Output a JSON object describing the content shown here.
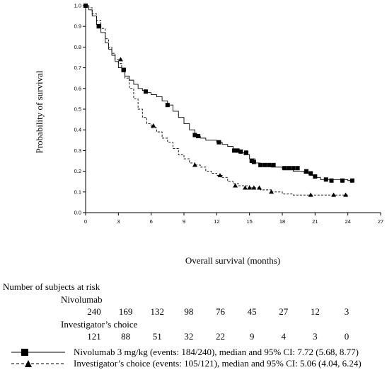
{
  "chart_data": {
    "type": "line",
    "ylabel": "Probability of survival",
    "xlabel": "Overall survival (months)",
    "xlim": [
      0,
      27
    ],
    "ylim": [
      0,
      1.0
    ],
    "xticks": [
      0,
      3,
      6,
      9,
      12,
      15,
      18,
      21,
      24,
      27
    ],
    "yticks": [
      0.0,
      0.1,
      0.2,
      0.3,
      0.4,
      0.5,
      0.6,
      0.7,
      0.8,
      0.9,
      1.0
    ],
    "ytick_labels": [
      "0.0",
      "0.1",
      "0.2",
      "0.3",
      "0.4",
      "0.5",
      "0.6",
      "0.7",
      "0.8",
      "0.9",
      "1.0"
    ],
    "grid": false,
    "series": [
      {
        "name": "Nivolumab 3 mg/kg (events: 184/240), median and 95% CI: 7.72 (5.68, 8.77)",
        "line_style": "solid",
        "marker": "square",
        "x": [
          0,
          0.3,
          0.6,
          1.0,
          1.4,
          1.8,
          2.1,
          2.4,
          2.7,
          3.0,
          3.3,
          3.6,
          4.0,
          4.4,
          4.8,
          5.2,
          5.6,
          6.0,
          6.5,
          7.0,
          7.5,
          8.0,
          8.5,
          9.0,
          9.5,
          10.0,
          10.5,
          11.0,
          11.5,
          12.0,
          12.5,
          13.0,
          13.5,
          14.0,
          14.5,
          15.0,
          15.5,
          16.0,
          17.0,
          18.0,
          19.0,
          20.0,
          20.5,
          21.0,
          21.5,
          22.0,
          23.0,
          24.0,
          24.5
        ],
        "y": [
          1.0,
          0.98,
          0.95,
          0.91,
          0.87,
          0.82,
          0.79,
          0.76,
          0.73,
          0.7,
          0.68,
          0.66,
          0.64,
          0.62,
          0.6,
          0.59,
          0.58,
          0.57,
          0.56,
          0.54,
          0.52,
          0.49,
          0.46,
          0.43,
          0.4,
          0.37,
          0.36,
          0.35,
          0.35,
          0.34,
          0.33,
          0.32,
          0.3,
          0.29,
          0.28,
          0.26,
          0.24,
          0.23,
          0.22,
          0.21,
          0.2,
          0.19,
          0.18,
          0.17,
          0.16,
          0.16,
          0.16,
          0.155,
          0.155
        ],
        "marker_x": [
          0,
          1.2,
          3.5,
          5.5,
          7.5,
          10.0,
          10.3,
          12.2,
          13.6,
          13.9,
          14.2,
          14.7,
          15.2,
          15.4,
          16.0,
          16.4,
          16.8,
          17.2,
          18.2,
          18.6,
          19.0,
          19.4,
          20.2,
          20.6,
          21.0,
          22.0,
          22.5,
          23.5,
          24.4
        ],
        "marker_y": [
          1.0,
          0.9,
          0.69,
          0.585,
          0.52,
          0.375,
          0.37,
          0.34,
          0.3,
          0.3,
          0.295,
          0.29,
          0.25,
          0.245,
          0.23,
          0.23,
          0.23,
          0.23,
          0.215,
          0.215,
          0.215,
          0.215,
          0.2,
          0.19,
          0.175,
          0.16,
          0.155,
          0.155,
          0.155
        ]
      },
      {
        "name": "Investigator’s choice (events: 105/121), median and 95% CI: 5.06 (4.04, 6.24)",
        "line_style": "dashed",
        "marker": "triangle",
        "x": [
          0,
          0.3,
          0.6,
          1.0,
          1.4,
          1.8,
          2.1,
          2.4,
          2.7,
          3.0,
          3.3,
          3.6,
          4.0,
          4.4,
          4.8,
          5.2,
          5.6,
          6.0,
          6.5,
          7.0,
          7.5,
          8.0,
          8.5,
          9.0,
          9.5,
          10.0,
          10.5,
          11.0,
          11.5,
          12.0,
          12.5,
          13.0,
          13.5,
          14.0,
          15.0,
          16.0,
          17.0,
          18.0,
          19.0,
          20.0,
          21.0,
          22.0,
          23.0,
          24.0
        ],
        "y": [
          1.0,
          0.99,
          0.96,
          0.93,
          0.89,
          0.84,
          0.8,
          0.77,
          0.74,
          0.72,
          0.69,
          0.65,
          0.6,
          0.55,
          0.5,
          0.46,
          0.43,
          0.41,
          0.39,
          0.36,
          0.34,
          0.31,
          0.28,
          0.26,
          0.24,
          0.23,
          0.22,
          0.2,
          0.19,
          0.18,
          0.17,
          0.15,
          0.14,
          0.13,
          0.12,
          0.11,
          0.1,
          0.09,
          0.085,
          0.085,
          0.085,
          0.085,
          0.085,
          0.085
        ],
        "marker_x": [
          0,
          3.2,
          6.2,
          10.0,
          12.3,
          13.7,
          14.6,
          15.0,
          15.4,
          15.9,
          17.0,
          20.6,
          22.7,
          23.8
        ],
        "marker_y": [
          1.0,
          0.74,
          0.42,
          0.23,
          0.18,
          0.13,
          0.12,
          0.12,
          0.12,
          0.12,
          0.1,
          0.085,
          0.085,
          0.085
        ]
      }
    ],
    "risk_table": {
      "title": "Number of subjects at risk",
      "timepoints": [
        0,
        3,
        6,
        9,
        12,
        15,
        18,
        21,
        24
      ],
      "arms": [
        {
          "name": "Nivolumab",
          "counts": [
            "240",
            "169",
            "132",
            "98",
            "76",
            "45",
            "27",
            "12",
            "3"
          ]
        },
        {
          "name": "Investigator’s choice",
          "counts": [
            "121",
            "88",
            "51",
            "32",
            "22",
            "9",
            "4",
            "3",
            "0"
          ]
        }
      ]
    }
  }
}
